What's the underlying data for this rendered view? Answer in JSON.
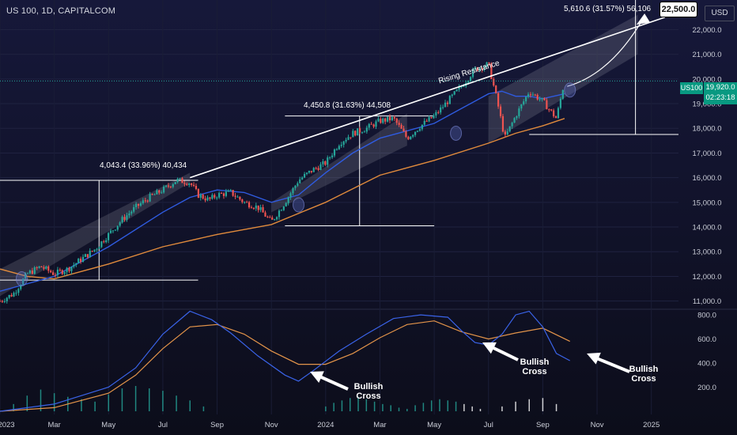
{
  "header": {
    "title": "US 100, 1D, CAPITALCOM",
    "currency": "USD",
    "symbol_tag": "US100",
    "last_price": "19,920.0",
    "countdown": "02:23:18"
  },
  "annotations": {
    "measure1": "4,043.4 (33.96%) 40,434",
    "measure2": "4,450.8 (31.63%) 44,508",
    "measure3": "5,610.6 (31.57%) 56,106",
    "target": "22,500.0",
    "resistance": "Rising Resistance",
    "bullish_cross": "Bullish Cross"
  },
  "colors": {
    "background": "#0d0e1c",
    "ma_blue": "#2f5be0",
    "ma_orange": "#e08a3c",
    "up_candle": "#26a69a",
    "down_candle": "#ef5350",
    "channel": "#ffffff",
    "osc_blue": "#3a63e8",
    "osc_orange": "#e3944a",
    "histogram": "#26a69a"
  },
  "chart_data": [
    {
      "type": "line",
      "title": "US 100, 1D, CAPITALCOM",
      "x_tick_labels": [
        "2023",
        "Mar",
        "May",
        "Jul",
        "Sep",
        "Nov",
        "2024",
        "Mar",
        "May",
        "Jul",
        "Sep",
        "Nov",
        "2025"
      ],
      "y_ticks": [
        11000,
        12000,
        13000,
        14000,
        15000,
        16000,
        17000,
        18000,
        19000,
        20000,
        21000,
        22000
      ],
      "y_tick_labels": [
        "11,000.0",
        "12,000.0",
        "13,000.0",
        "14,000.0",
        "15,000.0",
        "16,000.0",
        "17,000.0",
        "18,000.0",
        "19,000.0",
        "20,000.0",
        "21,000.0",
        "22,000.0"
      ],
      "ylim": [
        10700,
        23200
      ],
      "x_range_months": [
        0,
        25
      ],
      "series": [
        {
          "kind": "price",
          "x": [
            0,
            0.5,
            1,
            1.5,
            2,
            2.5,
            3,
            3.5,
            4,
            4.5,
            5,
            5.5,
            6,
            6.5,
            7,
            7.3,
            7.7,
            8,
            8.5,
            9,
            9.5,
            10,
            10.5,
            11,
            11.5,
            12,
            12.5,
            13,
            13.5,
            14,
            14.5,
            15,
            15.5,
            16,
            16.5,
            17,
            17.5,
            18,
            18.3,
            18.6,
            19,
            19.5,
            20,
            20.5,
            20.8
          ],
          "values": [
            11000,
            11300,
            12100,
            12400,
            12100,
            12300,
            12700,
            13100,
            13700,
            14300,
            14800,
            15200,
            15500,
            15900,
            15800,
            15300,
            15100,
            15300,
            15400,
            15000,
            14800,
            14200,
            15000,
            15900,
            16300,
            16600,
            17400,
            17800,
            18000,
            18300,
            18400,
            17600,
            18100,
            18500,
            19100,
            19700,
            20400,
            20600,
            19200,
            17600,
            18500,
            19500,
            19100,
            18400,
            19920
          ]
        },
        {
          "name": "MA 50",
          "x": [
            0,
            2,
            4,
            6,
            7,
            8,
            9,
            10,
            11,
            12,
            13,
            14,
            15,
            16,
            17,
            18,
            18.5,
            19,
            19.5,
            20,
            20.8
          ],
          "values": [
            11400,
            12000,
            13200,
            14600,
            15200,
            15500,
            15400,
            15000,
            15300,
            16200,
            17000,
            17600,
            17900,
            18200,
            18800,
            19400,
            19500,
            19300,
            19300,
            19200,
            19400
          ]
        },
        {
          "name": "MA 200",
          "x": [
            0,
            1,
            2,
            4,
            6,
            8,
            10,
            12,
            14,
            16,
            18,
            19,
            20,
            20.8
          ],
          "values": [
            12300,
            12000,
            11900,
            12500,
            13200,
            13700,
            14100,
            15000,
            16100,
            16700,
            17400,
            17800,
            18100,
            18400
          ]
        }
      ],
      "channels": [
        {
          "x": [
            0,
            7
          ],
          "lower": [
            11200,
            15800
          ],
          "upper": [
            12300,
            16200
          ]
        },
        {
          "x": [
            10,
            15
          ],
          "lower": [
            14600,
            17300
          ],
          "upper": [
            15000,
            18600
          ]
        },
        {
          "x": [
            18,
            23.5
          ],
          "lower": [
            17400,
            21000
          ],
          "upper": [
            19300,
            22600
          ]
        }
      ],
      "resistance_line": {
        "x": [
          7,
          24.5
        ],
        "values": [
          16000,
          22500
        ]
      },
      "measurements": [
        {
          "x": [
            0,
            7.3
          ],
          "low": 11850,
          "high": 15893,
          "label": "4,043.4 (33.96%) 40,434"
        },
        {
          "x": [
            10.5,
            16
          ],
          "low": 14050,
          "high": 18501,
          "label": "4,450.8 (31.63%) 44,508"
        },
        {
          "x": [
            19.5,
            25
          ],
          "low": 17750,
          "high": 23361,
          "label": "5,610.6 (31.57%) 56,106"
        }
      ]
    },
    {
      "type": "line",
      "y_ticks": [
        200,
        400,
        600,
        800
      ],
      "y_tick_labels": [
        "200.0",
        "400.0",
        "600.0",
        "800.0"
      ],
      "ylim": [
        0,
        840
      ],
      "series": [
        {
          "name": "MACD",
          "x": [
            0,
            2,
            4,
            5,
            6,
            7,
            7.8,
            8.5,
            9.5,
            10.5,
            11,
            11.5,
            12.5,
            13.5,
            14.5,
            15.5,
            16.5,
            17,
            17.5,
            18,
            18.5,
            19,
            19.5,
            20,
            20.5,
            21
          ],
          "values": [
            0,
            60,
            200,
            360,
            640,
            830,
            760,
            650,
            460,
            300,
            250,
            330,
            500,
            640,
            770,
            800,
            780,
            670,
            570,
            550,
            640,
            800,
            830,
            700,
            480,
            420
          ]
        },
        {
          "name": "Signal",
          "x": [
            0,
            2,
            4,
            5,
            6,
            7,
            8,
            9,
            10,
            11,
            12,
            13,
            14,
            15,
            16,
            17,
            18,
            19,
            20,
            21
          ],
          "values": [
            0,
            30,
            150,
            300,
            520,
            700,
            720,
            640,
            500,
            390,
            390,
            480,
            610,
            720,
            750,
            660,
            600,
            650,
            690,
            580
          ]
        }
      ],
      "histogram": {
        "x": [
          0.5,
          1,
          1.5,
          2,
          2.5,
          3,
          3.5,
          4,
          4.5,
          5,
          5.5,
          6,
          6.5,
          7,
          7.5,
          12,
          12.3,
          12.6,
          12.9,
          13.2,
          13.5,
          13.8,
          14.1,
          14.4,
          14.7,
          15,
          15.3,
          15.6,
          15.9,
          16.2,
          16.5,
          16.8,
          17.1,
          17.4,
          17.7,
          18.5,
          19,
          19.5,
          20,
          20.5
        ],
        "values": [
          60,
          130,
          180,
          150,
          120,
          100,
          80,
          140,
          190,
          210,
          190,
          170,
          130,
          90,
          40,
          40,
          70,
          90,
          110,
          120,
          100,
          80,
          60,
          50,
          30,
          20,
          50,
          70,
          90,
          100,
          90,
          80,
          60,
          40,
          20,
          40,
          80,
          100,
          110,
          60
        ]
      }
    }
  ]
}
